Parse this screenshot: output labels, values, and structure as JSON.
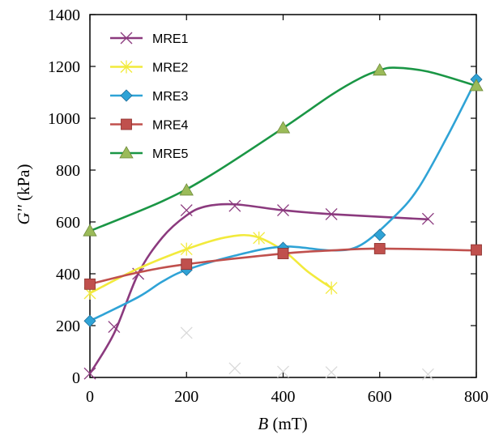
{
  "chart_data": {
    "type": "line",
    "title": "",
    "xlabel": {
      "var": "B",
      "unit": " (mT)"
    },
    "ylabel": {
      "var": "G''",
      "unit": " (kPa)"
    },
    "xlim": [
      0,
      800
    ],
    "ylim": [
      0,
      1400
    ],
    "xticks": [
      0,
      200,
      400,
      600,
      800
    ],
    "yticks": [
      0,
      200,
      400,
      600,
      800,
      1000,
      1200,
      1400
    ],
    "grid": false,
    "legend": "top-left",
    "series": [
      {
        "name": "MRE1",
        "color": "#8B3A7E",
        "marker": "x",
        "points": [
          [
            0,
            15
          ],
          [
            50,
            195
          ],
          [
            100,
            400
          ],
          [
            200,
            645
          ],
          [
            300,
            662
          ],
          [
            400,
            645
          ],
          [
            500,
            630
          ],
          [
            700,
            612
          ]
        ],
        "curve": [
          [
            0,
            15
          ],
          [
            50,
            170
          ],
          [
            100,
            400
          ],
          [
            150,
            540
          ],
          [
            200,
            625
          ],
          [
            240,
            660
          ],
          [
            300,
            668
          ],
          [
            400,
            645
          ],
          [
            500,
            630
          ],
          [
            700,
            610
          ]
        ]
      },
      {
        "name": "MRE2",
        "color": "#F2EA3C",
        "marker": "asterisk",
        "points": [
          [
            0,
            325
          ],
          [
            200,
            495
          ],
          [
            350,
            538
          ],
          [
            500,
            345
          ]
        ],
        "curve": [
          [
            0,
            325
          ],
          [
            100,
            420
          ],
          [
            200,
            495
          ],
          [
            280,
            540
          ],
          [
            340,
            545
          ],
          [
            400,
            490
          ],
          [
            450,
            410
          ],
          [
            500,
            345
          ]
        ]
      },
      {
        "name": "MRE3",
        "color": "#2FA3D6",
        "marker": "diamond",
        "points": [
          [
            0,
            218
          ],
          [
            200,
            415
          ],
          [
            400,
            500
          ],
          [
            600,
            550
          ],
          [
            800,
            1150
          ]
        ],
        "curve": [
          [
            0,
            218
          ],
          [
            100,
            310
          ],
          [
            150,
            370
          ],
          [
            200,
            415
          ],
          [
            300,
            470
          ],
          [
            400,
            505
          ],
          [
            500,
            490
          ],
          [
            560,
            510
          ],
          [
            630,
            620
          ],
          [
            680,
            730
          ],
          [
            740,
            930
          ],
          [
            800,
            1150
          ]
        ]
      },
      {
        "name": "MRE4",
        "color": "#C0504D",
        "marker": "square",
        "points": [
          [
            0,
            360
          ],
          [
            200,
            437
          ],
          [
            400,
            478
          ],
          [
            600,
            497
          ],
          [
            800,
            492
          ]
        ],
        "curve": [
          [
            0,
            360
          ],
          [
            100,
            405
          ],
          [
            200,
            437
          ],
          [
            400,
            478
          ],
          [
            500,
            490
          ],
          [
            600,
            497
          ],
          [
            800,
            490
          ]
        ]
      },
      {
        "name": "MRE5",
        "color": "#1A9645",
        "marker_color": "#9BBB59",
        "marker": "triangle",
        "points": [
          [
            0,
            565
          ],
          [
            200,
            722
          ],
          [
            400,
            962
          ],
          [
            600,
            1185
          ],
          [
            800,
            1125
          ]
        ],
        "curve": [
          [
            0,
            565
          ],
          [
            150,
            680
          ],
          [
            250,
            780
          ],
          [
            400,
            962
          ],
          [
            500,
            1090
          ],
          [
            560,
            1155
          ],
          [
            600,
            1185
          ],
          [
            630,
            1195
          ],
          [
            700,
            1180
          ],
          [
            800,
            1125
          ]
        ]
      }
    ],
    "faint_markers": {
      "color": "#D9D9D9",
      "marker": "x",
      "points": [
        [
          200,
          172
        ],
        [
          300,
          35
        ],
        [
          400,
          22
        ],
        [
          500,
          20
        ],
        [
          700,
          12
        ]
      ]
    }
  }
}
